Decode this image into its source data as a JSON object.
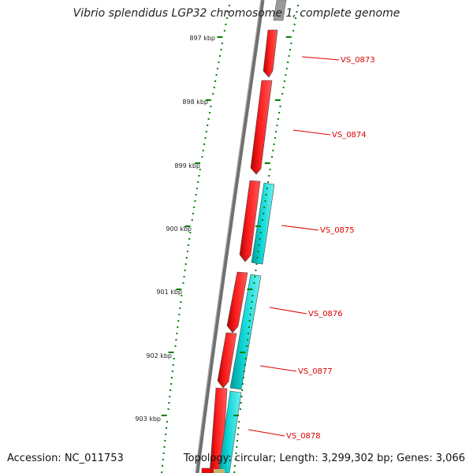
{
  "title": "Vibrio splendidus LGP32 chromosome 1, complete genome",
  "accession_line": "Accession: NC_011753",
  "topology_line": "Topology: circular; Length: 3,299,302 bp; Genes: 3,066",
  "colors": {
    "backbone": "#808080",
    "forward_gene": "#ff0000",
    "reverse_gene": "#00cccc",
    "feature_border": "#4a4a4a",
    "tick": "#008000",
    "gene_label": "#dd0000"
  },
  "scale": {
    "ticks": [
      {
        "label": "897 kbp"
      },
      {
        "label": "898 kbp"
      },
      {
        "label": "899 kbp"
      },
      {
        "label": "900 kbp"
      },
      {
        "label": "901 kbp"
      },
      {
        "label": "902 kbp"
      },
      {
        "label": "903 kbp"
      }
    ]
  },
  "gene_labels": [
    {
      "label": "VS_0873"
    },
    {
      "label": "VS_0874"
    },
    {
      "label": "VS_0875"
    },
    {
      "label": "VS_0876"
    },
    {
      "label": "VS_0877"
    },
    {
      "label": "VS_0878"
    }
  ],
  "strands": [
    "forward",
    "reverse"
  ]
}
